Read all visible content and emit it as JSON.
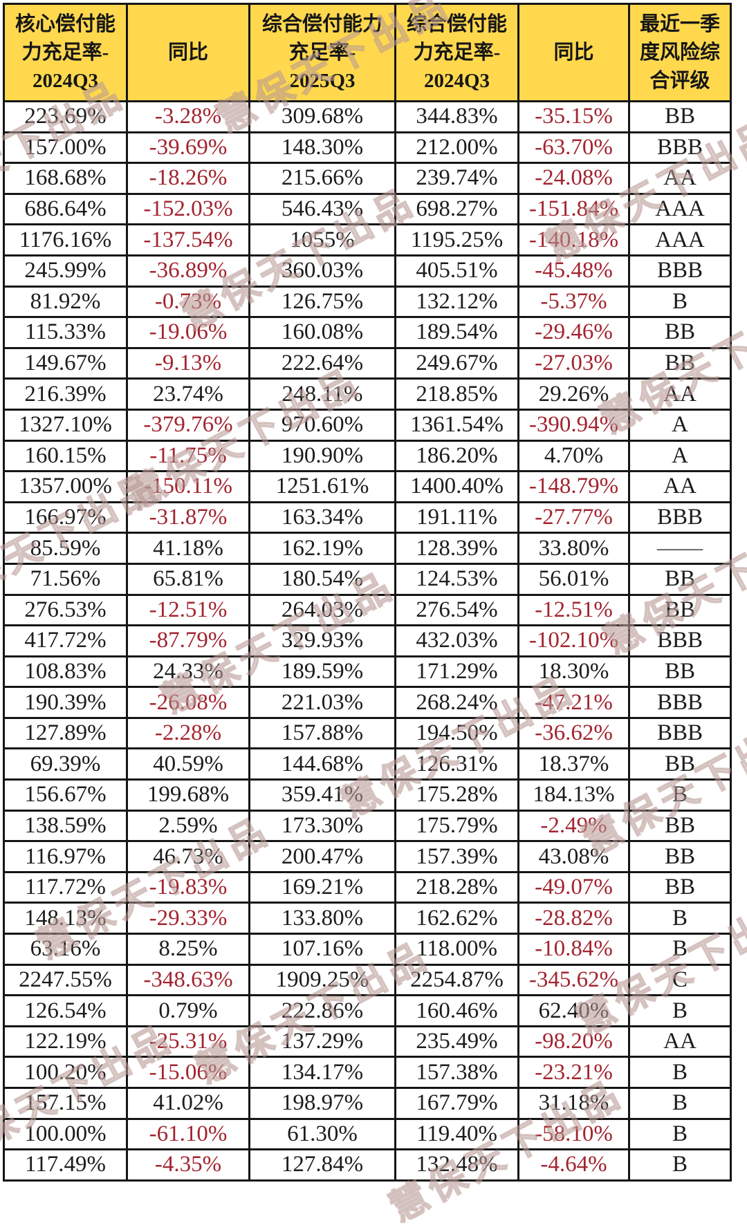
{
  "table": {
    "headers": [
      "核心偿付能\n力充足率-\n2024Q3",
      "同比",
      "综合偿付能力\n充足率-\n2025Q3",
      "综合偿付能\n力充足率-\n2024Q3",
      "同比",
      "最近一季\n度风险综\n合评级"
    ],
    "rows": [
      [
        "223.69%",
        "-3.28%",
        "309.68%",
        "344.83%",
        "-35.15%",
        "BB"
      ],
      [
        "157.00%",
        "-39.69%",
        "148.30%",
        "212.00%",
        "-63.70%",
        "BBB"
      ],
      [
        "168.68%",
        "-18.26%",
        "215.66%",
        "239.74%",
        "-24.08%",
        "AA"
      ],
      [
        "686.64%",
        "-152.03%",
        "546.43%",
        "698.27%",
        "-151.84%",
        "AAA"
      ],
      [
        "1176.16%",
        "-137.54%",
        "1055%",
        "1195.25%",
        "-140.18%",
        "AAA"
      ],
      [
        "245.99%",
        "-36.89%",
        "360.03%",
        "405.51%",
        "-45.48%",
        "BBB"
      ],
      [
        "81.92%",
        "-0.73%",
        "126.75%",
        "132.12%",
        "-5.37%",
        "B"
      ],
      [
        "115.33%",
        "-19.06%",
        "160.08%",
        "189.54%",
        "-29.46%",
        "BB"
      ],
      [
        "149.67%",
        "-9.13%",
        "222.64%",
        "249.67%",
        "-27.03%",
        "BB"
      ],
      [
        "216.39%",
        "23.74%",
        "248.11%",
        "218.85%",
        "29.26%",
        "AA"
      ],
      [
        "1327.10%",
        "-379.76%",
        "970.60%",
        "1361.54%",
        "-390.94%",
        "A"
      ],
      [
        "160.15%",
        "-11.75%",
        "190.90%",
        "186.20%",
        "4.70%",
        "A"
      ],
      [
        "1357.00%",
        "-150.11%",
        "1251.61%",
        "1400.40%",
        "-148.79%",
        "AA"
      ],
      [
        "166.97%",
        "-31.87%",
        "163.34%",
        "191.11%",
        "-27.77%",
        "BBB"
      ],
      [
        "85.59%",
        "41.18%",
        "162.19%",
        "128.39%",
        "33.80%",
        "——"
      ],
      [
        "71.56%",
        "65.81%",
        "180.54%",
        "124.53%",
        "56.01%",
        "BB"
      ],
      [
        "276.53%",
        "-12.51%",
        "264.03%",
        "276.54%",
        "-12.51%",
        "BB"
      ],
      [
        "417.72%",
        "-87.79%",
        "329.93%",
        "432.03%",
        "-102.10%",
        "BBB"
      ],
      [
        "108.83%",
        "24.33%",
        "189.59%",
        "171.29%",
        "18.30%",
        "BB"
      ],
      [
        "190.39%",
        "-26.08%",
        "221.03%",
        "268.24%",
        "-47.21%",
        "BBB"
      ],
      [
        "127.89%",
        "-2.28%",
        "157.88%",
        "194.50%",
        "-36.62%",
        "BBB"
      ],
      [
        "69.39%",
        "40.59%",
        "144.68%",
        "126.31%",
        "18.37%",
        "BB"
      ],
      [
        "156.67%",
        "199.68%",
        "359.41%",
        "175.28%",
        "184.13%",
        "B"
      ],
      [
        "138.59%",
        "2.59%",
        "173.30%",
        "175.79%",
        "-2.49%",
        "BB"
      ],
      [
        "116.97%",
        "46.73%",
        "200.47%",
        "157.39%",
        "43.08%",
        "BB"
      ],
      [
        "117.72%",
        "-19.83%",
        "169.21%",
        "218.28%",
        "-49.07%",
        "BB"
      ],
      [
        "148.13%",
        "-29.33%",
        "133.80%",
        "162.62%",
        "-28.82%",
        "B"
      ],
      [
        "63.16%",
        "8.25%",
        "107.16%",
        "118.00%",
        "-10.84%",
        "B"
      ],
      [
        "2247.55%",
        "-348.63%",
        "1909.25%",
        "2254.87%",
        "-345.62%",
        "C"
      ],
      [
        "126.54%",
        "0.79%",
        "222.86%",
        "160.46%",
        "62.40%",
        "B"
      ],
      [
        "122.19%",
        "-25.31%",
        "137.29%",
        "235.49%",
        "-98.20%",
        "AA"
      ],
      [
        "100.20%",
        "-15.06%",
        "134.17%",
        "157.38%",
        "-23.21%",
        "B"
      ],
      [
        "157.15%",
        "41.02%",
        "198.97%",
        "167.79%",
        "31.18%",
        "B"
      ],
      [
        "100.00%",
        "-61.10%",
        "61.30%",
        "119.40%",
        "-58.10%",
        "B"
      ],
      [
        "117.49%",
        "-4.35%",
        "127.84%",
        "132.48%",
        "-4.64%",
        "B"
      ]
    ]
  },
  "watermark": {
    "text": "慧保天下出品"
  },
  "colors": {
    "header_bg": "#FFD84E",
    "negative_text": "#A2242F",
    "normal_text": "#1c1c1c",
    "border": "#151515",
    "dash_text": "#4a4a4a"
  }
}
